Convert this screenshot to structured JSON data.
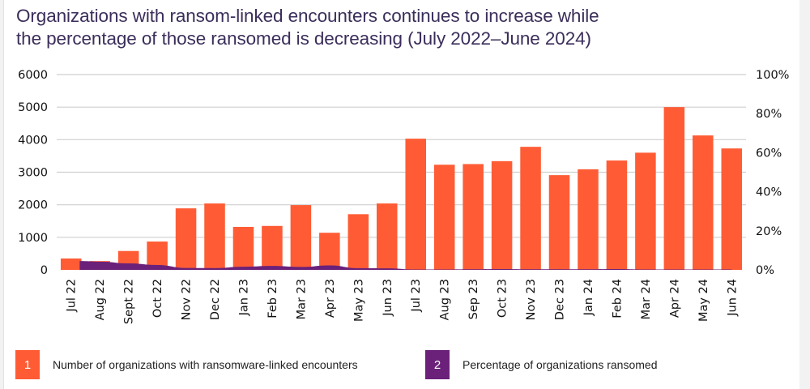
{
  "chart_data": {
    "type": "bar",
    "title": "Organizations with ransom-linked encounters continues to increase while the percentage of those ransomed is decreasing (July 2022–June 2024)",
    "title_lines": [
      "Organizations with ransom-linked encounters continues to increase while",
      "the percentage of those ransomed is decreasing (July 2022–June 2024)"
    ],
    "categories": [
      "Jul 22",
      "Aug 22",
      "Sept 22",
      "Oct 22",
      "Nov 22",
      "Dec 22",
      "Jan 23",
      "Feb 23",
      "Mar 23",
      "Apr 23",
      "May 23",
      "Jun 23",
      "Jul 23",
      "Aug 23",
      "Sep 23",
      "Oct 23",
      "Nov 23",
      "Dec 23",
      "Jan 24",
      "Feb 24",
      "Mar 24",
      "Apr 24",
      "May 24",
      "Jun 24"
    ],
    "series": [
      {
        "name": "Number of organizations with ransomware-linked encounters",
        "legend_number": "1",
        "type": "bar",
        "axis": "left",
        "color": "#ff5c35",
        "values": [
          350,
          270,
          580,
          870,
          1890,
          2040,
          1320,
          1350,
          1990,
          1140,
          1710,
          2040,
          4030,
          3230,
          3250,
          3340,
          3780,
          2910,
          3090,
          3360,
          3600,
          5000,
          4130,
          3730
        ]
      },
      {
        "name": "Percentage of organizations ransomed",
        "legend_number": "2",
        "type": "area",
        "axis": "right",
        "color": "#6b2179",
        "values": [
          4.5,
          4.2,
          3.3,
          2.5,
          1.0,
          0.9,
          1.6,
          2.0,
          1.5,
          2.3,
          0.9,
          0.8,
          0.2,
          0.2,
          0.3,
          0.4,
          0.3,
          0.3,
          0.3,
          0.4,
          0.2,
          0.2,
          0.2,
          0.2
        ]
      }
    ],
    "y_left": {
      "ticks": [
        "0",
        "1000",
        "2000",
        "3000",
        "4000",
        "5000",
        "6000"
      ],
      "range": [
        0,
        6000
      ]
    },
    "y_right": {
      "ticks": [
        "0%",
        "20%",
        "40%",
        "60%",
        "80%",
        "100%"
      ],
      "range": [
        0,
        100
      ]
    },
    "xlabel": "",
    "ylabel": "",
    "grid": true,
    "legend_position": "bottom"
  }
}
